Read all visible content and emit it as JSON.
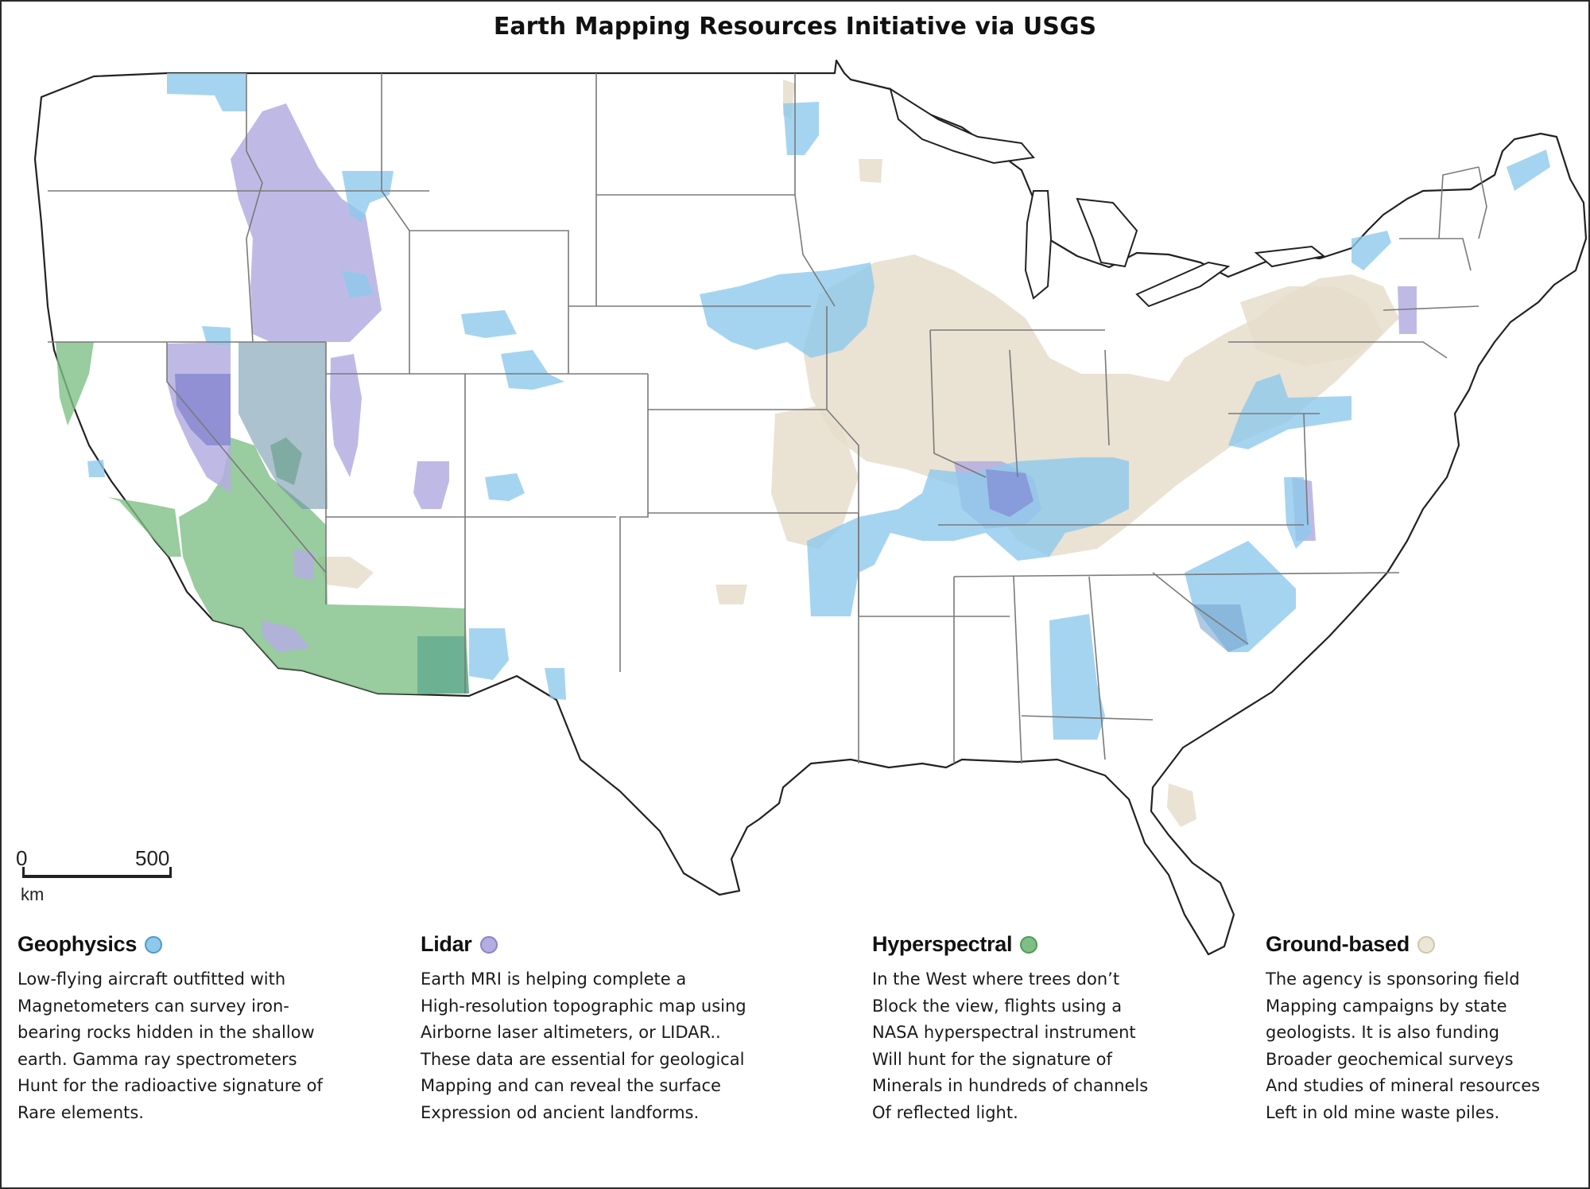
{
  "title": "Earth Mapping Resources Initiative via USGS",
  "scale_bar": {
    "start_label": "0",
    "end_label": "500",
    "unit_label": "km"
  },
  "colors": {
    "geophysics": "#8ec9ec",
    "lidar": "#b4aee0",
    "hyperspectral": "#7fbf86",
    "ground_based": "#e6ddcb",
    "state_border": "#7a7a7a",
    "coastline": "#222222"
  },
  "legend": [
    {
      "key": "geophysics",
      "label": "Geophysics",
      "swatch_color": "#8ec9ec",
      "lines": [
        "Low-flying aircraft outfitted with",
        "Magnetometers can survey iron-",
        "bearing rocks hidden in the shallow",
        "earth. Gamma ray spectrometers",
        "Hunt for the radioactive signature of",
        "Rare elements."
      ]
    },
    {
      "key": "lidar",
      "label": "Lidar",
      "swatch_color": "#b4aee0",
      "lines": [
        "Earth MRI is helping complete a",
        "High-resolution topographic map using",
        "Airborne laser altimeters, or LIDAR..",
        "These data are essential for geological",
        "Mapping and can reveal the surface",
        "Expression od ancient landforms."
      ]
    },
    {
      "key": "hyperspectral",
      "label": "Hyperspectral",
      "swatch_color": "#7fbf86",
      "lines": [
        "In the West where trees don’t",
        "Block the view, flights using a",
        "NASA hyperspectral instrument",
        "Will hunt for the signature of",
        "Minerals in hundreds of channels",
        "Of reflected light."
      ]
    },
    {
      "key": "ground_based",
      "label": "Ground-based",
      "swatch_color": "#e6ddcb",
      "lines": [
        "The agency is sponsoring field",
        "Mapping campaigns by state",
        "geologists. It is also funding",
        "Broader geochemical surveys",
        "And studies of mineral resources",
        "Left in old mine waste piles."
      ]
    }
  ]
}
